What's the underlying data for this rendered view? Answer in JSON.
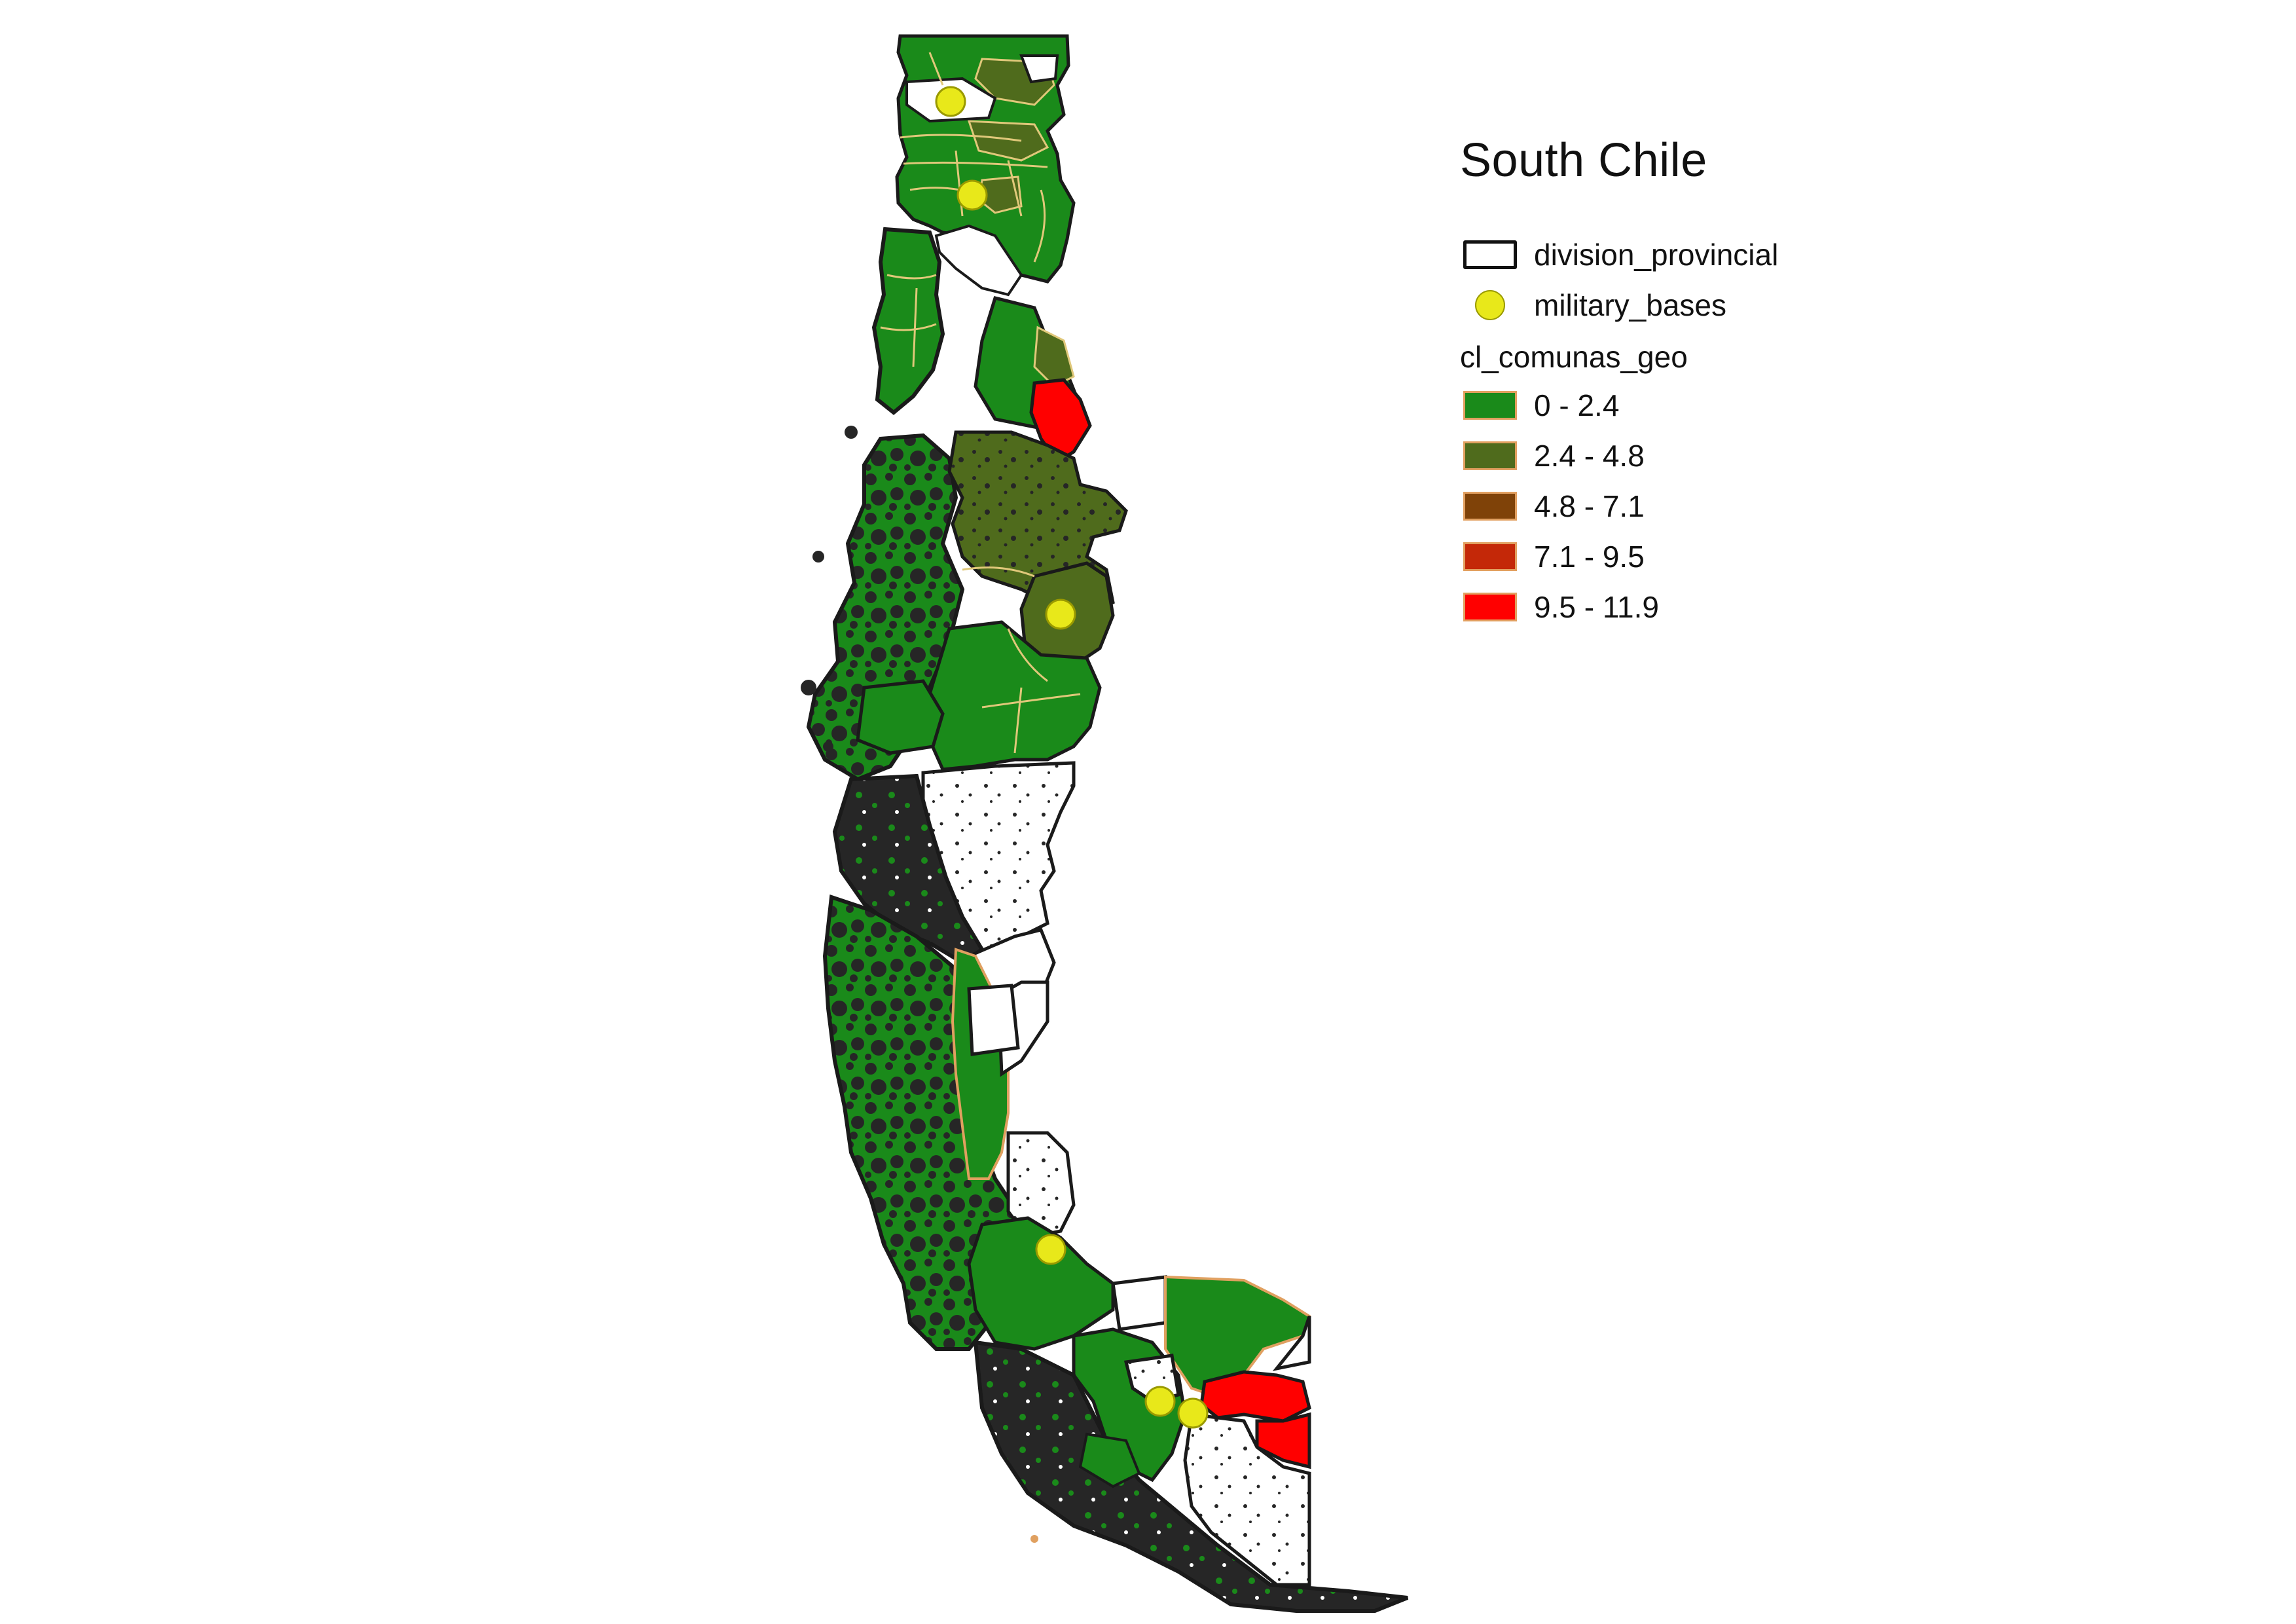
{
  "map": {
    "title": "South Chile",
    "colors": {
      "island_fill": "#262626",
      "boundary_stroke": "#1a1a1a",
      "base_point": "#e8e81a",
      "inner_comuna_line": "#e0c87a"
    }
  },
  "legend": {
    "layers": [
      {
        "label": "division_provincial",
        "symbol": "outline-rect",
        "color": "#ffffff"
      },
      {
        "label": "military_bases",
        "symbol": "circle",
        "color": "#e8e81a"
      }
    ],
    "choropleth_title": "cl_comunas_geo",
    "classes": [
      {
        "label": "0 - 2.4",
        "color": "#1a8a1a"
      },
      {
        "label": "2.4 - 4.8",
        "color": "#4f6b1c"
      },
      {
        "label": "4.8 - 7.1",
        "color": "#7f4208"
      },
      {
        "label": "7.1 - 9.5",
        "color": "#c42808"
      },
      {
        "label": "9.5 - 11.9",
        "color": "#ff0000"
      }
    ]
  },
  "military_bases_count": 6
}
